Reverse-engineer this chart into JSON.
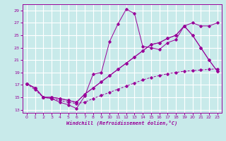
{
  "xlabel": "Windchill (Refroidissement éolien,°C)",
  "bg_color": "#c8eaea",
  "grid_color": "#ffffff",
  "line_color": "#990099",
  "xlim": [
    -0.5,
    23.5
  ],
  "ylim": [
    12.5,
    30.0
  ],
  "xticks": [
    0,
    1,
    2,
    3,
    4,
    5,
    6,
    7,
    8,
    9,
    10,
    11,
    12,
    13,
    14,
    15,
    16,
    17,
    18,
    19,
    20,
    21,
    22,
    23
  ],
  "yticks": [
    13,
    15,
    17,
    19,
    21,
    23,
    25,
    27,
    29
  ],
  "series": {
    "line1_solid": [
      17.2,
      16.5,
      15.0,
      14.8,
      14.2,
      13.8,
      13.2,
      15.2,
      18.7,
      19.0,
      24.0,
      26.8,
      29.2,
      28.5,
      23.2,
      23.0,
      22.7,
      23.8,
      24.3,
      26.5,
      25.0,
      23.0,
      21.0,
      19.2
    ],
    "line2_solid": [
      17.2,
      16.5,
      15.0,
      15.0,
      14.8,
      14.5,
      14.2,
      15.5,
      16.5,
      17.5,
      18.5,
      19.5,
      20.5,
      21.5,
      22.5,
      23.5,
      23.8,
      24.5,
      25.0,
      26.5,
      27.0,
      26.5,
      26.5,
      27.0
    ],
    "line3_solid": [
      17.2,
      16.5,
      15.0,
      15.0,
      14.8,
      14.5,
      14.2,
      15.5,
      16.5,
      17.5,
      18.5,
      19.5,
      20.5,
      21.5,
      22.5,
      23.5,
      23.8,
      24.5,
      25.0,
      26.5,
      25.0,
      23.0,
      21.0,
      19.2
    ],
    "line4_dashed": [
      17.2,
      16.2,
      15.0,
      14.8,
      14.5,
      14.2,
      14.0,
      14.2,
      14.8,
      15.3,
      15.8,
      16.3,
      16.8,
      17.3,
      17.8,
      18.2,
      18.5,
      18.8,
      19.0,
      19.2,
      19.3,
      19.4,
      19.5,
      19.6
    ]
  }
}
